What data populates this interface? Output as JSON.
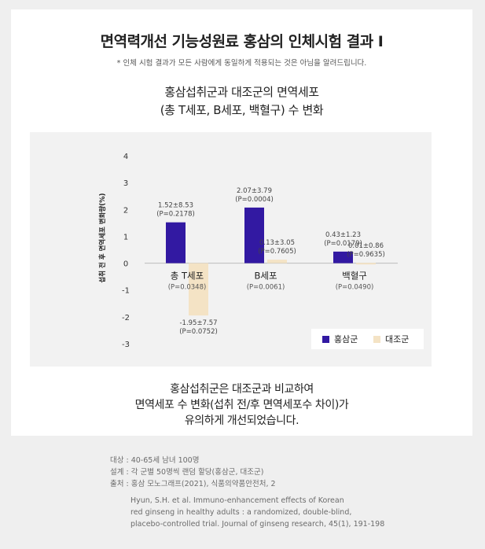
{
  "header": {
    "title": "면역력개선 기능성원료 홍삼의 인체시험 결과 Ⅰ",
    "note": "* 인체 시험 결과가 모든 사람에게 동일하게 적용되는 것은 아님을 알려드립니다."
  },
  "subtitle": {
    "line1": "홍삼섭취군과 대조군의 면역세포",
    "line2": "(총 T세포, B세포, 백혈구) 수 변화"
  },
  "chart_data": {
    "type": "bar",
    "categories": [
      "총 T세포",
      "B세포",
      "백혈구"
    ],
    "category_pvalues": [
      "(P=0.0348)",
      "(P=0.0061)",
      "(P=0.0490)"
    ],
    "ylabel": "섭취 전 후 면역세포 변화량(%)",
    "ylim": [
      -3,
      4
    ],
    "yticks": [
      "4",
      "3",
      "2",
      "1",
      "0",
      "-1",
      "-2",
      "-3"
    ],
    "grid": false,
    "legend_position": "bottom-right",
    "series": [
      {
        "name": "홍삼군",
        "color": "#3219a2",
        "values": [
          1.52,
          2.07,
          0.43
        ],
        "labels": [
          "1.52±8.53",
          "2.07±3.79",
          "0.43±1.23"
        ],
        "pvalues": [
          "(P=0.2178)",
          "(P=0.0004)",
          "(P=0.0179)"
        ]
      },
      {
        "name": "대조군",
        "color": "#f4e3c5",
        "values": [
          -1.95,
          0.13,
          0.01
        ],
        "labels": [
          "-1.95±7.57",
          "0.13±3.05",
          "0.01±0.86"
        ],
        "pvalues": [
          "(P=0.0752)",
          "(P=0.7605)",
          "(P=0.9635)"
        ]
      }
    ]
  },
  "conclusion": {
    "line1": "홍삼섭취군은 대조군과 비교하여",
    "line2": "면역세포 수 변화(섭취 전/후 면역세포수 차이)가",
    "line3": "유의하게 개선되었습니다."
  },
  "meta": {
    "subjects": "대상 : 40-65세 남녀 100명",
    "design": "설계 : 각 군별 50명씩 랜덤 할당(홍삼군, 대조군)",
    "source": "출처 : 홍삼 모노그래프(2021), 식품의약품안전처, 2"
  },
  "citation": {
    "line1": "Hyun, S.H. et al. Immuno-enhancement effects of Korean",
    "line2": "red ginseng in healthy adults :  a randomized, double-blind,",
    "line3": "placebo-controlled trial. Journal of ginseng research, 45(1), 191-198"
  }
}
